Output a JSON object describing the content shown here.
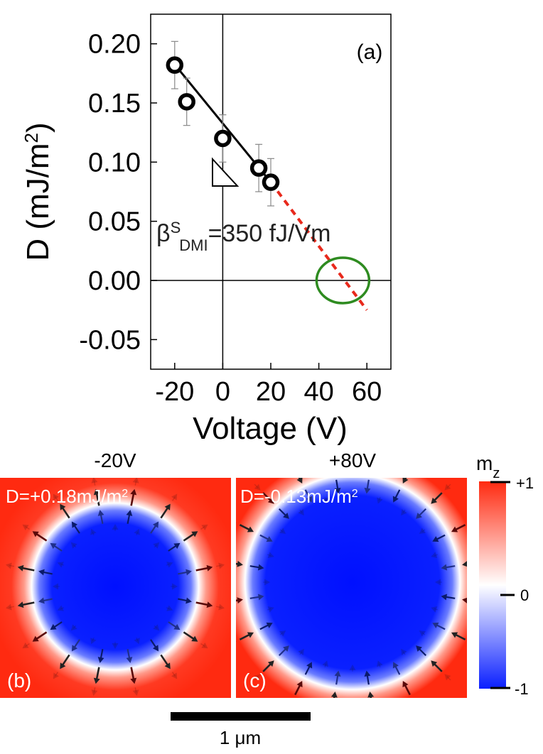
{
  "chart_data": [
    {
      "panel": "(a)",
      "type": "scatter",
      "xlabel": "Voltage (V)",
      "ylabel": "D (mJ/m",
      "ylabel_sup": "2",
      "ylabel_end": ")",
      "xlim": [
        -30,
        70
      ],
      "ylim": [
        -0.075,
        0.225
      ],
      "xticks": [
        -20,
        0,
        20,
        40,
        60
      ],
      "xtick_labels": [
        "-20",
        "0",
        "20",
        "40",
        "60"
      ],
      "yticks": [
        0.2,
        0.15,
        0.1,
        0.05,
        0.0,
        -0.05
      ],
      "ytick_labels": [
        "0.20",
        "0.15",
        "0.10",
        "0.05",
        "0.00",
        "-0.05"
      ],
      "points": [
        {
          "x": -20,
          "y": 0.182,
          "err": 0.02
        },
        {
          "x": -15,
          "y": 0.151,
          "err": 0.02
        },
        {
          "x": 0,
          "y": 0.12,
          "err": 0.02
        },
        {
          "x": 15,
          "y": 0.095,
          "err": 0.02
        },
        {
          "x": 20,
          "y": 0.083,
          "err": 0.02
        }
      ],
      "fit_line": {
        "x": [
          -21,
          20
        ],
        "y": [
          0.185,
          0.083
        ],
        "color": "#000000"
      },
      "extrapolation": {
        "x": [
          20,
          60
        ],
        "y": [
          0.083,
          -0.025
        ],
        "color": "#e8291c"
      },
      "highlight_circle": {
        "x": 50,
        "y": 0.0,
        "color": "#2e8b20"
      },
      "annotation": {
        "main": "β",
        "sup": "S",
        "sub": "DMI",
        "value": "=350 fJ/Vm"
      }
    },
    {
      "panel": "(b)",
      "type": "heatmap",
      "title": "-20V",
      "annotation": "D=+0.18mJ/m",
      "annotation_sup": "2",
      "domain_radius": 0.27,
      "arrows": "outward"
    },
    {
      "panel": "(c)",
      "type": "heatmap",
      "title": "+80V",
      "annotation": "D=-0.13mJ/m",
      "annotation_sup": "2",
      "domain_radius": 0.39,
      "arrows": "inward"
    }
  ],
  "colorbar": {
    "title_main": "m",
    "title_sub": "z",
    "labels": [
      "+1",
      "0",
      "-1"
    ],
    "colors": {
      "top": "#ff2a10",
      "middle": "#ffffff",
      "bottom": "#0a1fff"
    }
  },
  "scalebar": {
    "label": "1 μm"
  }
}
